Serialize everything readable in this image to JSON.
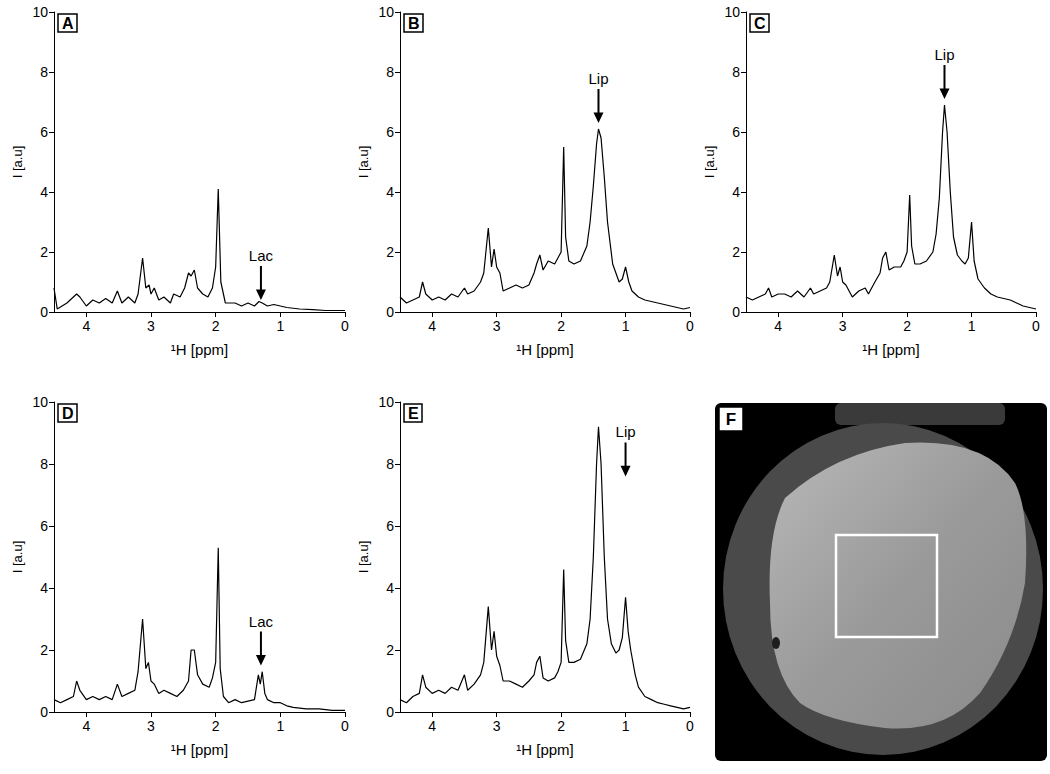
{
  "chart_data": [
    {
      "type": "line",
      "label": "A",
      "xlabel": "¹H [ppm]",
      "ylabel": "I [a.u]",
      "color": "#000000",
      "grid": false,
      "xlim": [
        4.5,
        0
      ],
      "xticks": [
        0,
        1,
        2,
        3,
        4
      ],
      "ylim": [
        0,
        10
      ],
      "yticks": [
        0,
        2,
        4,
        6,
        8,
        10
      ],
      "x": [
        4.5,
        4.45,
        4.3,
        4.15,
        4.1,
        4.0,
        3.9,
        3.8,
        3.7,
        3.6,
        3.52,
        3.45,
        3.35,
        3.25,
        3.2,
        3.13,
        3.08,
        3.03,
        3.0,
        2.95,
        2.88,
        2.8,
        2.7,
        2.65,
        2.55,
        2.48,
        2.42,
        2.38,
        2.33,
        2.28,
        2.2,
        2.12,
        2.05,
        2.0,
        1.96,
        1.92,
        1.85,
        1.7,
        1.6,
        1.5,
        1.4,
        1.33,
        1.28,
        1.2,
        1.1,
        1.0,
        0.9,
        0.7,
        0.5,
        0.3,
        0.1,
        0
      ],
      "values": [
        0.8,
        0.1,
        0.3,
        0.6,
        0.5,
        0.2,
        0.4,
        0.3,
        0.45,
        0.3,
        0.7,
        0.3,
        0.5,
        0.3,
        0.6,
        1.8,
        0.8,
        0.9,
        0.6,
        0.8,
        0.4,
        0.5,
        0.3,
        0.6,
        0.5,
        0.8,
        1.3,
        1.2,
        1.4,
        0.8,
        0.6,
        0.5,
        0.8,
        1.5,
        4.1,
        1.0,
        0.3,
        0.3,
        0.2,
        0.3,
        0.2,
        0.35,
        0.3,
        0.2,
        0.25,
        0.2,
        0.15,
        0.1,
        0.08,
        0.05,
        0.05,
        0.05
      ],
      "annotation": {
        "text": "Lac",
        "x": 1.3,
        "y": 0.4
      }
    },
    {
      "type": "line",
      "label": "B",
      "xlabel": "¹H [ppm]",
      "ylabel": "I [a.u]",
      "color": "#000000",
      "grid": false,
      "xlim": [
        4.5,
        0
      ],
      "xticks": [
        0,
        1,
        2,
        3,
        4
      ],
      "ylim": [
        0,
        10
      ],
      "yticks": [
        0,
        2,
        4,
        6,
        8,
        10
      ],
      "x": [
        4.5,
        4.4,
        4.3,
        4.2,
        4.15,
        4.1,
        4.0,
        3.9,
        3.8,
        3.7,
        3.6,
        3.5,
        3.45,
        3.35,
        3.25,
        3.2,
        3.13,
        3.08,
        3.04,
        3.0,
        2.95,
        2.9,
        2.8,
        2.7,
        2.6,
        2.5,
        2.42,
        2.38,
        2.33,
        2.28,
        2.2,
        2.1,
        2.05,
        2.0,
        1.96,
        1.93,
        1.88,
        1.8,
        1.7,
        1.6,
        1.55,
        1.5,
        1.45,
        1.42,
        1.38,
        1.33,
        1.28,
        1.2,
        1.1,
        1.05,
        1.0,
        0.95,
        0.9,
        0.8,
        0.7,
        0.6,
        0.5,
        0.4,
        0.3,
        0.2,
        0.1,
        0
      ],
      "values": [
        0.5,
        0.3,
        0.4,
        0.5,
        1.0,
        0.6,
        0.4,
        0.5,
        0.4,
        0.6,
        0.5,
        0.8,
        0.6,
        0.7,
        1.0,
        1.3,
        2.8,
        1.5,
        2.1,
        1.5,
        1.3,
        0.7,
        0.8,
        0.9,
        0.8,
        0.9,
        1.3,
        1.6,
        1.9,
        1.4,
        1.7,
        1.6,
        1.8,
        2.0,
        5.5,
        2.5,
        1.7,
        1.6,
        1.7,
        2.2,
        3.0,
        4.2,
        5.6,
        6.1,
        5.8,
        4.5,
        3.0,
        1.6,
        1.0,
        1.1,
        1.5,
        1.0,
        0.7,
        0.5,
        0.4,
        0.35,
        0.3,
        0.25,
        0.2,
        0.15,
        0.1,
        0.15
      ],
      "annotation": {
        "text": "Lip",
        "x": 1.42,
        "y": 6.3
      }
    },
    {
      "type": "line",
      "label": "C",
      "xlabel": "¹H [ppm]",
      "ylabel": "I [a.u]",
      "color": "#000000",
      "grid": false,
      "xlim": [
        4.5,
        0
      ],
      "xticks": [
        0,
        1,
        2,
        3,
        4
      ],
      "ylim": [
        0,
        10
      ],
      "yticks": [
        0,
        2,
        4,
        6,
        8,
        10
      ],
      "x": [
        4.5,
        4.4,
        4.3,
        4.2,
        4.15,
        4.1,
        4.0,
        3.9,
        3.8,
        3.7,
        3.6,
        3.5,
        3.45,
        3.35,
        3.25,
        3.2,
        3.13,
        3.08,
        3.04,
        3.0,
        2.95,
        2.85,
        2.75,
        2.65,
        2.6,
        2.5,
        2.42,
        2.38,
        2.33,
        2.28,
        2.2,
        2.1,
        2.05,
        2.0,
        1.96,
        1.93,
        1.88,
        1.8,
        1.7,
        1.6,
        1.55,
        1.5,
        1.45,
        1.42,
        1.38,
        1.33,
        1.28,
        1.22,
        1.15,
        1.1,
        1.05,
        1.0,
        0.96,
        0.9,
        0.8,
        0.7,
        0.6,
        0.5,
        0.4,
        0.3,
        0.2,
        0.1,
        0
      ],
      "values": [
        0.5,
        0.4,
        0.5,
        0.6,
        0.8,
        0.5,
        0.6,
        0.6,
        0.5,
        0.7,
        0.5,
        0.8,
        0.6,
        0.7,
        0.8,
        1.0,
        1.9,
        1.2,
        1.5,
        1.0,
        0.9,
        0.5,
        0.7,
        0.8,
        0.6,
        1.0,
        1.3,
        1.8,
        2.0,
        1.4,
        1.5,
        1.5,
        1.7,
        2.0,
        3.9,
        2.2,
        1.6,
        1.6,
        1.7,
        2.0,
        2.6,
        3.8,
        6.0,
        6.9,
        6.0,
        4.0,
        2.5,
        1.9,
        1.7,
        1.6,
        1.8,
        3.0,
        1.7,
        1.1,
        0.8,
        0.6,
        0.5,
        0.45,
        0.4,
        0.3,
        0.2,
        0.15,
        0.1
      ],
      "annotation": {
        "text": "Lip",
        "x": 1.42,
        "y": 7.1
      }
    },
    {
      "type": "line",
      "label": "D",
      "xlabel": "¹H [ppm]",
      "ylabel": "I [a.u]",
      "color": "#000000",
      "grid": false,
      "xlim": [
        4.5,
        0
      ],
      "xticks": [
        0,
        1,
        2,
        3,
        4
      ],
      "ylim": [
        0,
        10
      ],
      "yticks": [
        0,
        2,
        4,
        6,
        8,
        10
      ],
      "x": [
        4.5,
        4.4,
        4.3,
        4.2,
        4.15,
        4.1,
        4.0,
        3.9,
        3.8,
        3.7,
        3.6,
        3.52,
        3.45,
        3.35,
        3.25,
        3.2,
        3.13,
        3.08,
        3.04,
        3.0,
        2.95,
        2.88,
        2.8,
        2.7,
        2.6,
        2.5,
        2.42,
        2.38,
        2.33,
        2.28,
        2.2,
        2.1,
        2.05,
        2.0,
        1.96,
        1.93,
        1.88,
        1.8,
        1.7,
        1.6,
        1.5,
        1.4,
        1.34,
        1.31,
        1.28,
        1.24,
        1.2,
        1.1,
        1.0,
        0.9,
        0.8,
        0.6,
        0.4,
        0.2,
        0
      ],
      "values": [
        0.4,
        0.3,
        0.4,
        0.5,
        1.0,
        0.7,
        0.4,
        0.5,
        0.4,
        0.5,
        0.4,
        0.9,
        0.5,
        0.6,
        0.7,
        1.3,
        3.0,
        1.4,
        1.6,
        1.0,
        0.9,
        0.6,
        0.7,
        0.6,
        0.5,
        0.7,
        1.0,
        2.0,
        2.0,
        1.2,
        0.9,
        0.8,
        1.1,
        1.6,
        5.3,
        1.4,
        0.5,
        0.3,
        0.4,
        0.3,
        0.35,
        0.4,
        1.2,
        0.9,
        1.3,
        0.6,
        0.4,
        0.3,
        0.3,
        0.2,
        0.15,
        0.1,
        0.1,
        0.05,
        0.05
      ],
      "annotation": {
        "text": "Lac",
        "x": 1.3,
        "y": 1.5
      }
    },
    {
      "type": "line",
      "label": "E",
      "xlabel": "¹H [ppm]",
      "ylabel": "I [a.u]",
      "color": "#000000",
      "grid": false,
      "xlim": [
        4.5,
        0
      ],
      "xticks": [
        0,
        1,
        2,
        3,
        4
      ],
      "ylim": [
        0,
        10
      ],
      "yticks": [
        0,
        2,
        4,
        6,
        8,
        10
      ],
      "x": [
        4.5,
        4.4,
        4.3,
        4.2,
        4.15,
        4.1,
        4.0,
        3.9,
        3.8,
        3.7,
        3.6,
        3.5,
        3.45,
        3.35,
        3.25,
        3.2,
        3.13,
        3.08,
        3.04,
        3.0,
        2.95,
        2.9,
        2.8,
        2.7,
        2.6,
        2.5,
        2.42,
        2.38,
        2.33,
        2.28,
        2.2,
        2.1,
        2.05,
        2.0,
        1.96,
        1.93,
        1.88,
        1.8,
        1.7,
        1.6,
        1.55,
        1.5,
        1.45,
        1.42,
        1.38,
        1.33,
        1.28,
        1.22,
        1.15,
        1.1,
        1.05,
        1.0,
        0.96,
        0.92,
        0.85,
        0.8,
        0.7,
        0.6,
        0.5,
        0.4,
        0.3,
        0.2,
        0.1,
        0
      ],
      "values": [
        0.4,
        0.3,
        0.5,
        0.6,
        1.2,
        0.8,
        0.6,
        0.7,
        0.6,
        0.8,
        0.7,
        1.2,
        0.7,
        0.9,
        1.2,
        1.6,
        3.4,
        2.0,
        2.6,
        1.8,
        1.5,
        1.0,
        1.0,
        0.9,
        0.8,
        1.0,
        1.2,
        1.6,
        1.8,
        1.1,
        1.0,
        1.1,
        1.3,
        1.6,
        4.6,
        2.3,
        1.6,
        1.6,
        1.7,
        2.2,
        3.0,
        5.0,
        8.0,
        9.2,
        8.0,
        5.0,
        3.0,
        2.2,
        1.9,
        2.0,
        2.4,
        3.7,
        2.6,
        2.0,
        1.2,
        0.8,
        0.5,
        0.4,
        0.3,
        0.25,
        0.2,
        0.15,
        0.1,
        0.15
      ],
      "annotation": {
        "text": "Lip",
        "x": 1.0,
        "y": 7.6
      }
    }
  ],
  "image_panel": {
    "label": "F"
  }
}
